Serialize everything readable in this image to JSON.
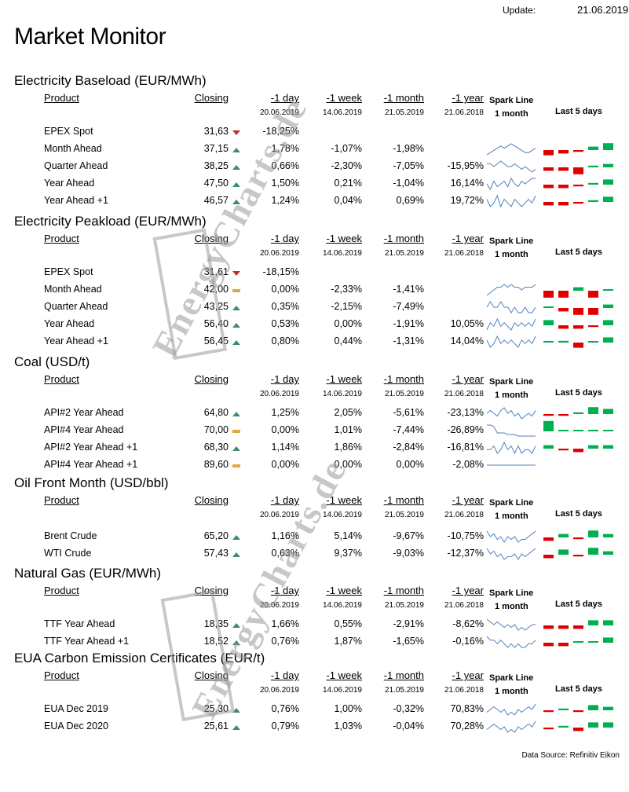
{
  "header": {
    "title": "Market Monitor",
    "update_label": "Update:",
    "update_date": "21.06.2019",
    "source": "Data Source: Refinitiv Eikon",
    "watermark": "EnergyCharts.de"
  },
  "columns": {
    "product": "Product",
    "closing": "Closing",
    "day": "-1 day",
    "week": "-1 week",
    "month": "-1 month",
    "year": "-1 year",
    "spark_line": "Spark Line",
    "spark_period": "1 month",
    "last5": "Last 5  days"
  },
  "colors": {
    "up": "#3c8c6e",
    "down": "#c0302a",
    "flat": "#e0a840",
    "bar_up": "#00b050",
    "bar_down": "#e00000",
    "spark": "#4f81bd"
  },
  "sections": [
    {
      "title": "Electricity Baseload (EUR/MWh)",
      "ref_dates": [
        "20.06.2019",
        "14.06.2019",
        "21.05.2019",
        "21.06.2018"
      ],
      "rows": [
        {
          "product": "EPEX Spot",
          "closing": "31,63",
          "trend": "down",
          "day": "-18,25%",
          "week": "",
          "month": "",
          "year": "",
          "spark": null,
          "bars": null
        },
        {
          "product": "Month Ahead",
          "closing": "37,15",
          "trend": "up",
          "day": "1,78%",
          "week": "-1,07%",
          "month": "-1,98%",
          "year": "",
          "spark": [
            4,
            5,
            6,
            7,
            8,
            7,
            8,
            9,
            8,
            7,
            6,
            5,
            5,
            6,
            7
          ],
          "bars": [
            -3,
            -2,
            -1,
            2,
            4
          ]
        },
        {
          "product": "Quarter Ahead",
          "closing": "38,25",
          "trend": "up",
          "day": "0,66%",
          "week": "-2,30%",
          "month": "-7,05%",
          "year": "-15,95%",
          "spark": [
            6,
            6,
            5,
            6,
            7,
            6,
            5,
            5,
            6,
            5,
            4,
            5,
            4,
            3,
            4
          ],
          "bars": [
            -2,
            -2,
            -4,
            1,
            2
          ]
        },
        {
          "product": "Year Ahead",
          "closing": "47,50",
          "trend": "up",
          "day": "1,50%",
          "week": "0,21%",
          "month": "-1,04%",
          "year": "16,14%",
          "spark": [
            6,
            4,
            7,
            5,
            6,
            7,
            5,
            8,
            6,
            5,
            7,
            6,
            7,
            8,
            8
          ],
          "bars": [
            -2,
            -2,
            -1,
            1,
            3
          ]
        },
        {
          "product": "Year  Ahead +1",
          "closing": "46,57",
          "trend": "up",
          "day": "1,24%",
          "week": "0,04%",
          "month": "0,69%",
          "year": "19,72%",
          "spark": [
            7,
            5,
            6,
            8,
            5,
            7,
            6,
            5,
            7,
            6,
            5,
            6,
            7,
            6,
            8
          ],
          "bars": [
            -2,
            -2,
            -1,
            1,
            3
          ]
        }
      ]
    },
    {
      "title": "Electricity Peakload (EUR/MWh)",
      "ref_dates": [
        "20.06.2019",
        "14.06.2019",
        "21.05.2019",
        "21.06.2018"
      ],
      "rows": [
        {
          "product": "EPEX Spot",
          "closing": "31,61",
          "trend": "down",
          "day": "-18,15%",
          "week": "",
          "month": "",
          "year": "",
          "spark": null,
          "bars": null
        },
        {
          "product": "Month Ahead",
          "closing": "42,00",
          "trend": "flat",
          "day": "0,00%",
          "week": "-2,33%",
          "month": "-1,41%",
          "year": "",
          "spark": [
            4,
            5,
            6,
            7,
            7,
            8,
            7,
            8,
            7,
            7,
            6,
            7,
            7,
            7,
            8
          ],
          "bars": [
            -4,
            -4,
            2,
            -4,
            0
          ]
        },
        {
          "product": "Quarter Ahead",
          "closing": "43,25",
          "trend": "up",
          "day": "0,35%",
          "week": "-2,15%",
          "month": "-7,49%",
          "year": "",
          "spark": [
            6,
            7,
            6,
            6,
            7,
            6,
            6,
            5,
            6,
            5,
            5,
            6,
            5,
            5,
            6
          ],
          "bars": [
            0,
            -2,
            -4,
            -4,
            2
          ]
        },
        {
          "product": "Year Ahead",
          "closing": "56,40",
          "trend": "up",
          "day": "0,53%",
          "week": "0,00%",
          "month": "-1,91%",
          "year": "10,05%",
          "spark": [
            5,
            7,
            6,
            8,
            6,
            7,
            6,
            5,
            7,
            6,
            7,
            6,
            7,
            6,
            8
          ],
          "bars": [
            3,
            -2,
            -2,
            -1,
            3
          ]
        },
        {
          "product": "Year  Ahead +1",
          "closing": "56,45",
          "trend": "up",
          "day": "0,80%",
          "week": "0,44%",
          "month": "-1,31%",
          "year": "14,04%",
          "spark": [
            7,
            5,
            6,
            8,
            6,
            7,
            6,
            7,
            6,
            5,
            7,
            6,
            7,
            6,
            8
          ],
          "bars": [
            0,
            1,
            -3,
            0,
            3
          ]
        }
      ]
    },
    {
      "title": "Coal (USD/t)",
      "ref_dates": [
        "20.06.2019",
        "14.06.2019",
        "21.05.2019",
        "21.06.2018"
      ],
      "rows": [
        {
          "product": "API#2 Year Ahead",
          "closing": "64,80",
          "trend": "up",
          "day": "1,25%",
          "week": "2,05%",
          "month": "-5,61%",
          "year": "-23,13%",
          "spark": [
            6,
            7,
            6,
            5,
            7,
            8,
            6,
            7,
            5,
            6,
            4,
            5,
            6,
            5,
            7
          ],
          "bars": [
            -1,
            -1,
            1,
            4,
            3
          ]
        },
        {
          "product": "API#4 Year Ahead",
          "closing": "70,00",
          "trend": "flat",
          "day": "0,00%",
          "week": "1,01%",
          "month": "-7,44%",
          "year": "-26,89%",
          "spark": [
            9,
            9,
            8,
            4,
            4,
            4,
            3,
            3,
            3,
            2,
            2,
            2,
            2,
            2,
            2
          ],
          "bars": [
            6,
            0,
            0,
            0,
            0
          ]
        },
        {
          "product": "API#2 Year Ahead +1",
          "closing": "68,30",
          "trend": "up",
          "day": "1,14%",
          "week": "1,86%",
          "month": "-2,84%",
          "year": "-16,81%",
          "spark": [
            6,
            6,
            7,
            5,
            6,
            8,
            6,
            7,
            5,
            7,
            5,
            6,
            6,
            5,
            7
          ],
          "bars": [
            2,
            -1,
            -2,
            2,
            2
          ]
        },
        {
          "product": "API#4 Year Ahead +1",
          "closing": "89,60",
          "trend": "flat",
          "day": "0,00%",
          "week": "0,00%",
          "month": "0,00%",
          "year": "-2,08%",
          "spark": [
            5,
            5,
            5,
            5,
            5,
            5,
            5,
            5,
            5,
            5,
            5,
            5,
            5,
            5,
            5
          ],
          "bars": null
        }
      ]
    },
    {
      "title": "Oil Front Month (USD/bbl)",
      "ref_dates": [
        "20.06.2019",
        "14.06.2019",
        "21.05.2019",
        "21.06.2018"
      ],
      "rows": [
        {
          "product": "Brent Crude",
          "closing": "65,20",
          "trend": "up",
          "day": "1,16%",
          "week": "5,14%",
          "month": "-9,67%",
          "year": "-10,75%",
          "spark": [
            8,
            6,
            7,
            5,
            6,
            4,
            6,
            5,
            6,
            4,
            5,
            5,
            6,
            7,
            8
          ],
          "bars": [
            -2,
            2,
            -1,
            4,
            2
          ]
        },
        {
          "product": "WTI Crude",
          "closing": "57,43",
          "trend": "up",
          "day": "0,63%",
          "week": "9,37%",
          "month": "-9,03%",
          "year": "-12,37%",
          "spark": [
            8,
            6,
            7,
            5,
            6,
            4,
            5,
            5,
            6,
            4,
            6,
            5,
            6,
            7,
            8
          ],
          "bars": [
            -2,
            3,
            -1,
            4,
            2
          ]
        }
      ]
    },
    {
      "title": "Natural Gas (EUR/MWh)",
      "ref_dates": [
        "20.06.2019",
        "14.06.2019",
        "21.05.2019",
        "21.06.2018"
      ],
      "rows": [
        {
          "product": "TTF Year Ahead",
          "closing": "18,35",
          "trend": "up",
          "day": "1,66%",
          "week": "0,55%",
          "month": "-2,91%",
          "year": "-8,62%",
          "spark": [
            8,
            7,
            6,
            7,
            6,
            5,
            6,
            5,
            6,
            4,
            5,
            4,
            5,
            6,
            6
          ],
          "bars": [
            -2,
            -2,
            -2,
            3,
            3
          ]
        },
        {
          "product": "TTF Year Ahead +1",
          "closing": "18,52",
          "trend": "up",
          "day": "0,76%",
          "week": "1,87%",
          "month": "-1,65%",
          "year": "-0,16%",
          "spark": [
            8,
            7,
            7,
            6,
            7,
            6,
            5,
            6,
            5,
            6,
            5,
            5,
            6,
            6,
            7
          ],
          "bars": [
            -2,
            -2,
            0,
            0,
            3
          ]
        }
      ]
    },
    {
      "title": "EUA Carbon Emission Certificates (EUR/t)",
      "ref_dates": [
        "20.06.2019",
        "14.06.2019",
        "21.05.2019",
        "21.06.2018"
      ],
      "rows": [
        {
          "product": "EUA Dec 2019",
          "closing": "25,30",
          "trend": "up",
          "day": "0,76%",
          "week": "1,00%",
          "month": "-0,32%",
          "year": "70,83%",
          "spark": [
            5,
            6,
            7,
            6,
            5,
            6,
            4,
            5,
            4,
            6,
            5,
            6,
            7,
            6,
            8
          ],
          "bars": [
            -1,
            1,
            -1,
            3,
            2
          ]
        },
        {
          "product": "EUA Dec 2020",
          "closing": "25,61",
          "trend": "up",
          "day": "0,79%",
          "week": "1,03%",
          "month": "-0,04%",
          "year": "70,28%",
          "spark": [
            5,
            6,
            7,
            6,
            5,
            6,
            4,
            5,
            4,
            6,
            5,
            6,
            7,
            6,
            8
          ],
          "bars": [
            -1,
            1,
            -2,
            3,
            3
          ]
        }
      ]
    }
  ]
}
